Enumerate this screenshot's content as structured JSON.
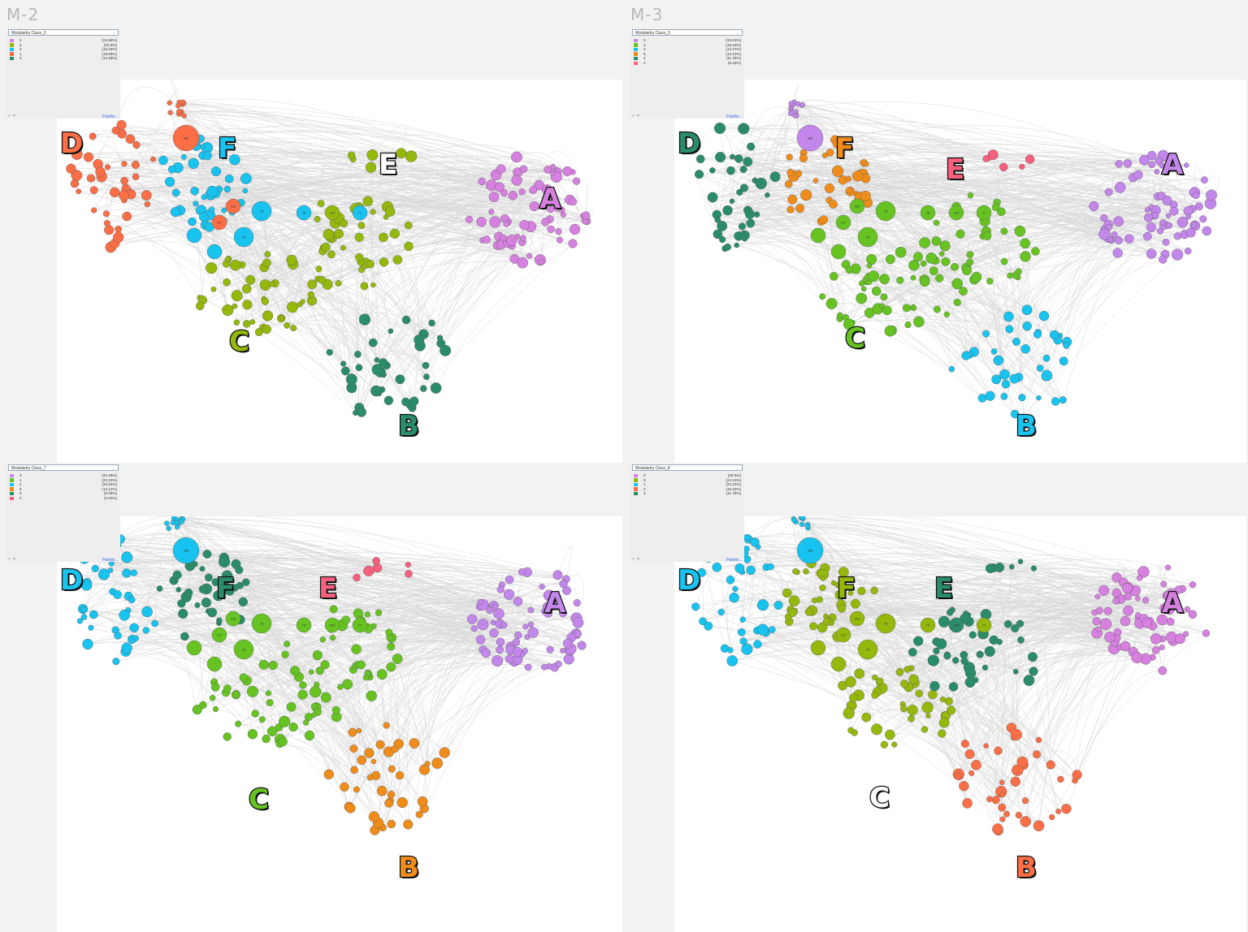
{
  "colors": {
    "purple": "#d680e0",
    "lavender": "#c386ea",
    "olive": "#94b80c",
    "lime": "#66c322",
    "cyan": "#18c3f0",
    "orange_red": "#fb6e46",
    "orange": "#ef8c1a",
    "teal": "#2a8c68",
    "pink": "#f6607c",
    "white": "#ffffff"
  },
  "panels": [
    {
      "id": "m2",
      "title": "M-2",
      "legend": {
        "select": "Modularity Class_2",
        "rows": [
          {
            "label": "4",
            "pct": "(24.58%)",
            "color": "#d680e0"
          },
          {
            "label": "0",
            "pct": "(22.9%)",
            "color": "#94b80c"
          },
          {
            "label": "2",
            "pct": "(19.19%)",
            "color": "#18c3f0"
          },
          {
            "label": "1",
            "pct": "(18.86%)",
            "color": "#fb6e46"
          },
          {
            "label": "3",
            "pct": "(14.48%)",
            "color": "#2a8c68"
          }
        ]
      },
      "palette_link": "Palette...",
      "regions": {
        "A": "#d680e0",
        "B": "#2a8c68",
        "C": "#94b80c",
        "D": "#fb6e46",
        "E": "#94b80c",
        "F": "#18c3f0",
        "hub": "#fb6e46",
        "center": "#18c3f0",
        "mid": "#94b80c",
        "top": "#fb6e46"
      },
      "letters": [
        {
          "text": "A",
          "color": "#d680e0"
        },
        {
          "text": "B",
          "color": "#2a8c68"
        },
        {
          "text": "C",
          "color": "#94b80c"
        },
        {
          "text": "D",
          "color": "#fb6e46"
        },
        {
          "text": "E",
          "color": "#ffffff"
        },
        {
          "text": "F",
          "color": "#18c3f0"
        }
      ]
    },
    {
      "id": "m3",
      "title": "M-3",
      "legend": {
        "select": "Modularity Class_3",
        "rows": [
          {
            "label": "0",
            "pct": "(34.01%)",
            "color": "#c386ea"
          },
          {
            "label": "1",
            "pct": "(18.18%)",
            "color": "#66c322"
          },
          {
            "label": "3",
            "pct": "(13.47%)",
            "color": "#18c3f0"
          },
          {
            "label": "5",
            "pct": "(13.13%)",
            "color": "#ef8c1a"
          },
          {
            "label": "4",
            "pct": "(11.78%)",
            "color": "#2a8c68"
          },
          {
            "label": "2",
            "pct": "(9.43%)",
            "color": "#f6607c"
          }
        ]
      },
      "palette_link": "Palette...",
      "regions": {
        "A": "#c386ea",
        "B": "#18c3f0",
        "C": "#66c322",
        "D": "#2a8c68",
        "E": "#f6607c",
        "F": "#ef8c1a",
        "hub": "#c386ea",
        "center": "#66c322",
        "mid": "#66c322",
        "top": "#c386ea"
      },
      "letters": [
        {
          "text": "A",
          "color": "#c386ea"
        },
        {
          "text": "B",
          "color": "#18c3f0"
        },
        {
          "text": "C",
          "color": "#66c322"
        },
        {
          "text": "D",
          "color": "#2a8c68"
        },
        {
          "text": "E",
          "color": "#f6607c"
        },
        {
          "text": "F",
          "color": "#ef8c1a"
        }
      ]
    },
    {
      "id": "m7",
      "title": "",
      "legend": {
        "select": "Modularity Class_7",
        "rows": [
          {
            "label": "3",
            "pct": "(31.99%)",
            "color": "#c386ea"
          },
          {
            "label": "1",
            "pct": "(22.22%)",
            "color": "#66c322"
          },
          {
            "label": "4",
            "pct": "(20.54%)",
            "color": "#18c3f0"
          },
          {
            "label": "5",
            "pct": "(12.12%)",
            "color": "#ef8c1a"
          },
          {
            "label": "0",
            "pct": "(9.09%)",
            "color": "#2a8c68"
          },
          {
            "label": "2",
            "pct": "(4.04%)",
            "color": "#f6607c"
          }
        ]
      },
      "palette_link": "Palette...",
      "regions": {
        "A": "#c386ea",
        "B": "#ef8c1a",
        "C": "#66c322",
        "D": "#18c3f0",
        "E": "#f6607c",
        "F": "#2a8c68",
        "hub": "#18c3f0",
        "center": "#66c322",
        "mid": "#66c322",
        "top": "#18c3f0"
      },
      "letters": [
        {
          "text": "A",
          "color": "#c386ea"
        },
        {
          "text": "B",
          "color": "#ef8c1a"
        },
        {
          "text": "C",
          "color": "#66c322"
        },
        {
          "text": "D",
          "color": "#18c3f0"
        },
        {
          "text": "E",
          "color": "#f6607c"
        },
        {
          "text": "F",
          "color": "#2a8c68"
        }
      ]
    },
    {
      "id": "m8",
      "title": "",
      "legend": {
        "select": "Modularity Class_8",
        "rows": [
          {
            "label": "0",
            "pct": "(26.6%)",
            "color": "#d680e0"
          },
          {
            "label": "3",
            "pct": "(24.24%)",
            "color": "#94b80c"
          },
          {
            "label": "1",
            "pct": "(22.22%)",
            "color": "#18c3f0"
          },
          {
            "label": "2",
            "pct": "(15.15%)",
            "color": "#fb6e46"
          },
          {
            "label": "4",
            "pct": "(11.78%)",
            "color": "#2a8c68"
          }
        ]
      },
      "palette_link": "Palette...",
      "regions": {
        "A": "#d680e0",
        "B": "#fb6e46",
        "C": "#94b80c",
        "D": "#18c3f0",
        "E": "#2a8c68",
        "F": "#94b80c",
        "hub": "#18c3f0",
        "center": "#94b80c",
        "mid": "#2a8c68",
        "top": "#18c3f0"
      },
      "letters": [
        {
          "text": "A",
          "color": "#d680e0"
        },
        {
          "text": "B",
          "color": "#fb6e46"
        },
        {
          "text": "C",
          "color": "#ffffff"
        },
        {
          "text": "D",
          "color": "#18c3f0"
        },
        {
          "text": "E",
          "color": "#2a8c68"
        },
        {
          "text": "F",
          "color": "#94b80c"
        }
      ]
    }
  ],
  "hub_labels": [
    "285",
    "75",
    "78",
    "100",
    "77",
    "229",
    "217",
    "76"
  ]
}
